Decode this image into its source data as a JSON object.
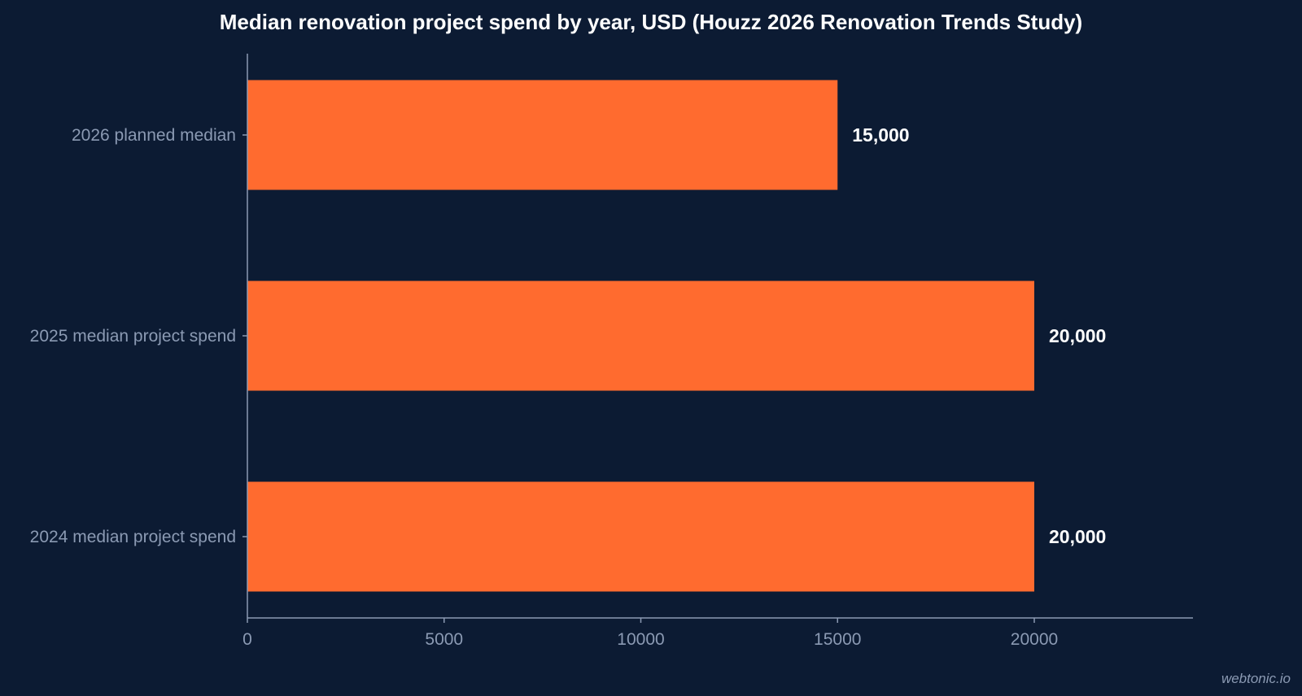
{
  "chart_data": {
    "type": "bar",
    "orientation": "horizontal",
    "title": "Median renovation project spend by year, USD (Houzz 2026 Renovation Trends Study)",
    "xlabel": "",
    "ylabel": "",
    "categories": [
      "2026 planned median",
      "2025 median project spend",
      "2024 median project spend"
    ],
    "values": [
      15000,
      20000,
      20000
    ],
    "value_labels": [
      "15,000",
      "20,000",
      "20,000"
    ],
    "x_ticks": [
      "0",
      "5000",
      "10000",
      "15000",
      "20000"
    ],
    "x_tick_values": [
      0,
      5000,
      10000,
      15000,
      20000
    ],
    "xlim": [
      0,
      24000
    ],
    "grid": false,
    "bar_color": "#ff6b2f",
    "background_color": "#0c1b33"
  },
  "watermark": "webtonic.io"
}
